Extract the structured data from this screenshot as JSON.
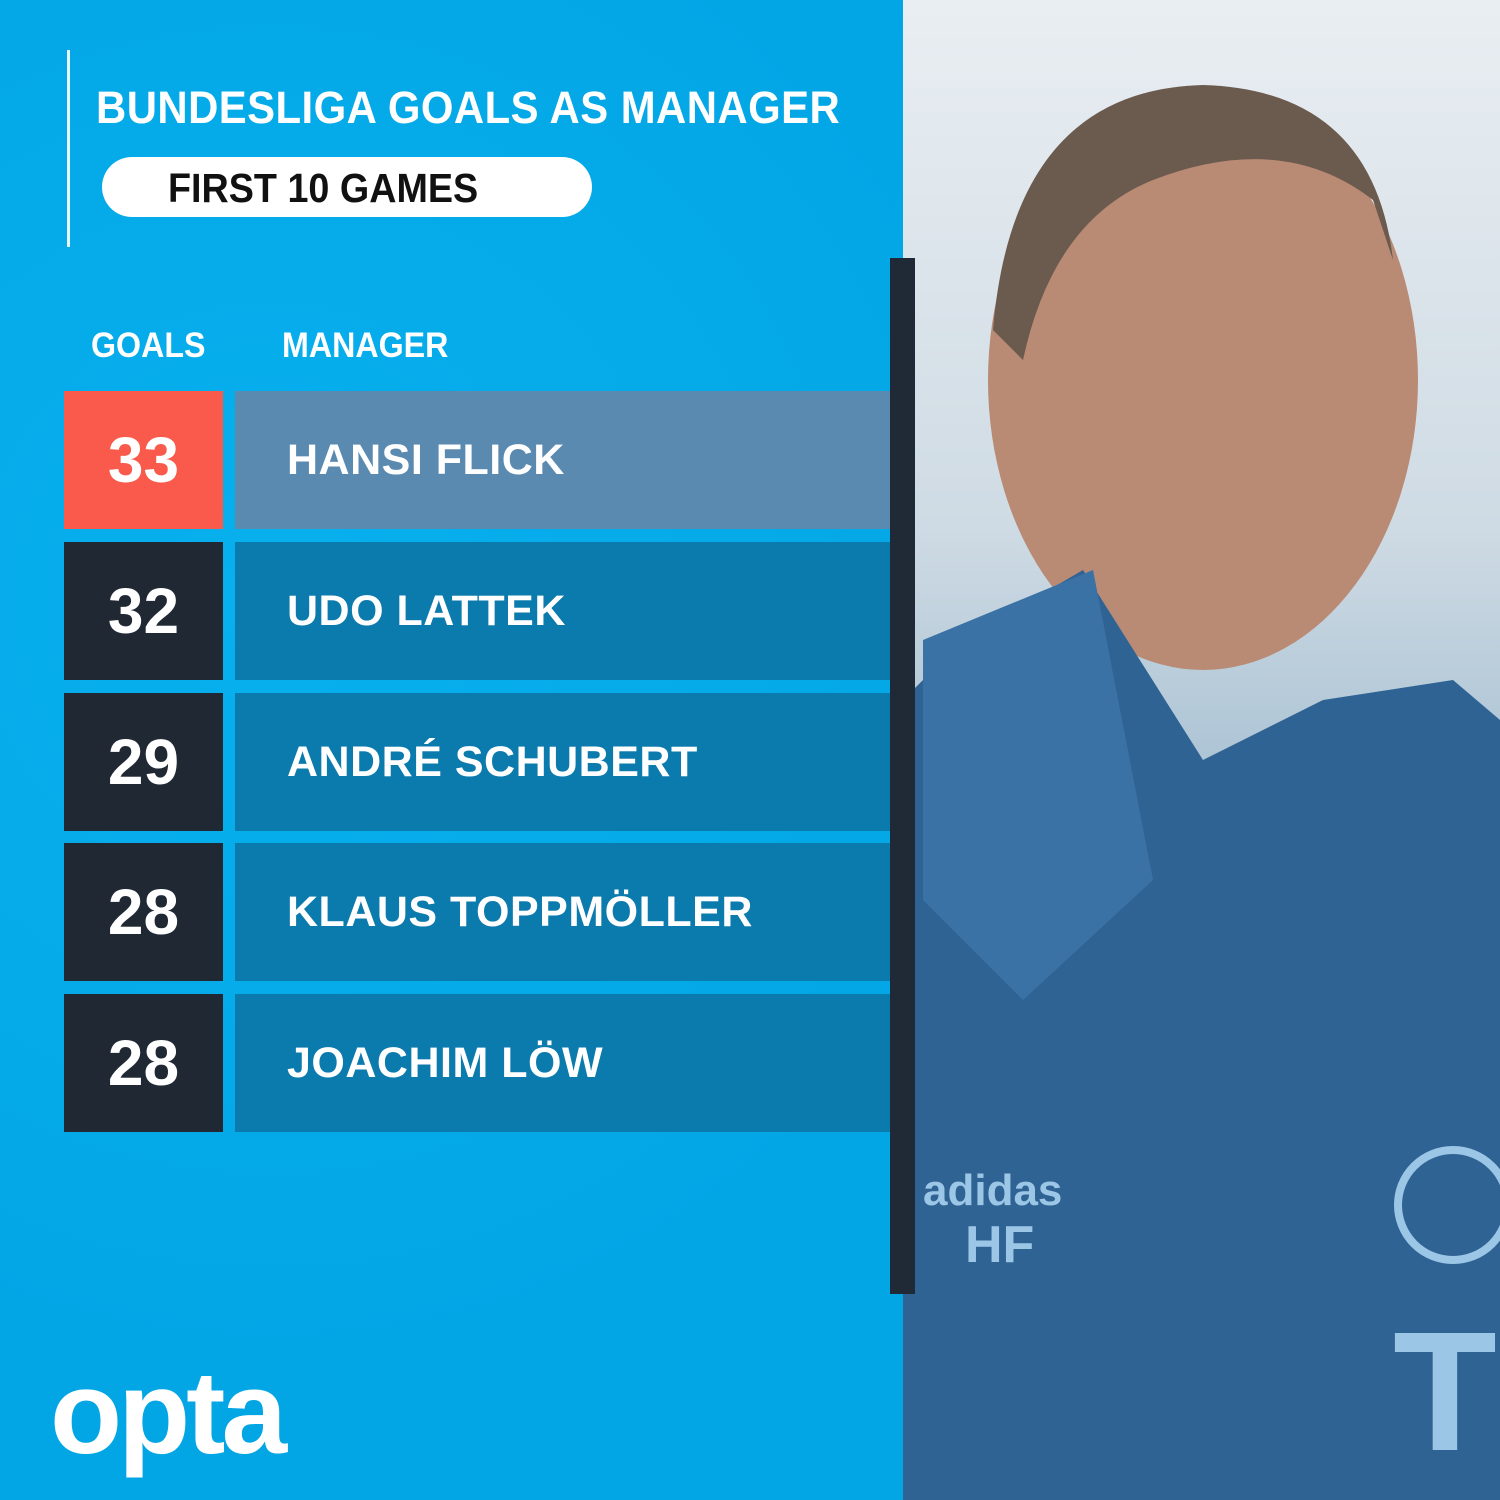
{
  "title": "BUNDESLIGA GOALS AS MANAGER",
  "subtitle": "FIRST 10 GAMES",
  "logo": "opta",
  "colors": {
    "background": "#03a9e8",
    "highlight_goal": "#fa5a4b",
    "highlight_name": "#5b8ab0",
    "goal_box": "#1f2833",
    "name_box": "#0b7aad"
  },
  "chart_data": {
    "type": "table",
    "title": "BUNDESLIGA GOALS AS MANAGER",
    "subtitle": "FIRST 10 GAMES",
    "columns": [
      "GOALS",
      "MANAGER"
    ],
    "rows": [
      {
        "goals": "33",
        "manager": "HANSI FLICK",
        "highlight": true
      },
      {
        "goals": "32",
        "manager": "UDO LATTEK",
        "highlight": false
      },
      {
        "goals": "29",
        "manager": "ANDRÉ SCHUBERT",
        "highlight": false
      },
      {
        "goals": "28",
        "manager": "KLAUS TOPPMÖLLER",
        "highlight": false
      },
      {
        "goals": "28",
        "manager": "JOACHIM LÖW",
        "highlight": false
      }
    ]
  },
  "photo": {
    "description_icon": "manager-portrait",
    "jacket_text": "adidas",
    "initials": "HF"
  }
}
